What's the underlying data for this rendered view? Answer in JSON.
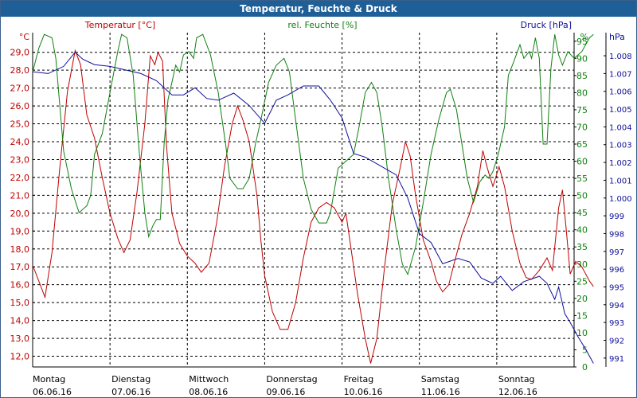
{
  "window": {
    "title": "Temperatur, Feuchte & Druck"
  },
  "chart_data": {
    "type": "line",
    "title": "Temperatur, Feuchte & Druck",
    "x": {
      "range": [
        0,
        7
      ],
      "unit": "days"
    },
    "days": [
      {
        "name": "Montag",
        "date": "06.06.16"
      },
      {
        "name": "Dienstag",
        "date": "07.06.16"
      },
      {
        "name": "Mittwoch",
        "date": "08.06.16"
      },
      {
        "name": "Donnerstag",
        "date": "09.06.16"
      },
      {
        "name": "Freitag",
        "date": "10.06.16"
      },
      {
        "name": "Samstag",
        "date": "11.06.16"
      },
      {
        "name": "Sonntag",
        "date": "12.06.16"
      }
    ],
    "axes": {
      "temperature": {
        "label": "Temperatur [°C]",
        "unit": "°C",
        "min": 11.4,
        "max": 30.1,
        "ticks": [
          "29,0",
          "28,0",
          "27,0",
          "26,0",
          "25,0",
          "24,0",
          "23,0",
          "22,0",
          "21,0",
          "20,0",
          "19,0",
          "18,0",
          "17,0",
          "16,0",
          "15,0",
          "14,0",
          "13,0",
          "12,0"
        ]
      },
      "humidity": {
        "label": "rel. Feuchte [%]",
        "unit": "%",
        "min": 0,
        "max": 97.5,
        "ticks": [
          "95",
          "90",
          "85",
          "80",
          "75",
          "70",
          "65",
          "60",
          "55",
          "50",
          "45",
          "40",
          "35",
          "30",
          "25",
          "20",
          "15",
          "10",
          "5",
          "0"
        ]
      },
      "pressure": {
        "label": "Druck [hPa]",
        "unit": "hPa",
        "min": 990.5,
        "max": 1009.3,
        "ticks": [
          "1.008",
          "1.007",
          "1.006",
          "1.005",
          "1.004",
          "1.003",
          "1.002",
          "1.001",
          "1.000",
          "999",
          "998",
          "997",
          "996",
          "995",
          "994",
          "993",
          "992",
          "991"
        ]
      }
    },
    "series": [
      {
        "name": "Temperatur [°C]",
        "color": "#c00000",
        "points": [
          [
            0,
            17.1
          ],
          [
            0.08,
            16.2
          ],
          [
            0.16,
            15.3
          ],
          [
            0.25,
            17.8
          ],
          [
            0.35,
            22.5
          ],
          [
            0.45,
            26.8
          ],
          [
            0.55,
            29.1
          ],
          [
            0.62,
            28.3
          ],
          [
            0.7,
            25.5
          ],
          [
            0.8,
            24.2
          ],
          [
            0.9,
            22.0
          ],
          [
            1.0,
            20.0
          ],
          [
            1.1,
            18.6
          ],
          [
            1.18,
            17.8
          ],
          [
            1.26,
            18.5
          ],
          [
            1.35,
            21.2
          ],
          [
            1.45,
            25.0
          ],
          [
            1.52,
            28.8
          ],
          [
            1.58,
            28.3
          ],
          [
            1.62,
            29.0
          ],
          [
            1.68,
            28.5
          ],
          [
            1.73,
            23.8
          ],
          [
            1.8,
            20.0
          ],
          [
            1.9,
            18.3
          ],
          [
            2.0,
            17.6
          ],
          [
            2.1,
            17.2
          ],
          [
            2.18,
            16.7
          ],
          [
            2.28,
            17.2
          ],
          [
            2.38,
            19.5
          ],
          [
            2.48,
            22.6
          ],
          [
            2.58,
            25.0
          ],
          [
            2.65,
            26.0
          ],
          [
            2.72,
            25.2
          ],
          [
            2.8,
            24.0
          ],
          [
            2.9,
            21.0
          ],
          [
            2.95,
            18.5
          ],
          [
            3.0,
            16.5
          ],
          [
            3.1,
            14.5
          ],
          [
            3.2,
            13.5
          ],
          [
            3.3,
            13.5
          ],
          [
            3.4,
            15.0
          ],
          [
            3.5,
            17.5
          ],
          [
            3.6,
            19.5
          ],
          [
            3.7,
            20.3
          ],
          [
            3.8,
            20.6
          ],
          [
            3.9,
            20.3
          ],
          [
            4.0,
            19.5
          ],
          [
            4.05,
            20.0
          ],
          [
            4.1,
            18.5
          ],
          [
            4.2,
            15.5
          ],
          [
            4.3,
            13.0
          ],
          [
            4.37,
            11.6
          ],
          [
            4.45,
            13.0
          ],
          [
            4.55,
            17.0
          ],
          [
            4.65,
            20.5
          ],
          [
            4.75,
            22.5
          ],
          [
            4.82,
            24.0
          ],
          [
            4.88,
            23.2
          ],
          [
            4.95,
            21.0
          ],
          [
            5.05,
            18.5
          ],
          [
            5.15,
            17.3
          ],
          [
            5.22,
            16.2
          ],
          [
            5.3,
            15.6
          ],
          [
            5.38,
            16.0
          ],
          [
            5.45,
            17.2
          ],
          [
            5.55,
            18.8
          ],
          [
            5.65,
            20.0
          ],
          [
            5.75,
            21.5
          ],
          [
            5.82,
            23.5
          ],
          [
            5.88,
            22.5
          ],
          [
            5.95,
            21.5
          ],
          [
            6.03,
            22.6
          ],
          [
            6.1,
            21.5
          ],
          [
            6.2,
            19.0
          ],
          [
            6.3,
            17.2
          ],
          [
            6.38,
            16.4
          ],
          [
            6.45,
            16.3
          ],
          [
            6.55,
            16.8
          ],
          [
            6.65,
            17.5
          ],
          [
            6.72,
            16.8
          ],
          [
            6.8,
            20.3
          ],
          [
            6.85,
            21.3
          ],
          [
            6.9,
            19.0
          ],
          [
            6.95,
            16.6
          ],
          [
            7.02,
            17.3
          ],
          [
            7.1,
            17.0
          ],
          [
            7.2,
            16.2
          ],
          [
            7.25,
            15.9
          ]
        ]
      },
      {
        "name": "rel. Feuchte [%]",
        "color": "#108010",
        "points": [
          [
            0,
            86
          ],
          [
            0.08,
            93
          ],
          [
            0.15,
            97
          ],
          [
            0.25,
            96
          ],
          [
            0.3,
            90
          ],
          [
            0.4,
            63
          ],
          [
            0.5,
            52
          ],
          [
            0.6,
            45
          ],
          [
            0.7,
            47
          ],
          [
            0.75,
            50
          ],
          [
            0.8,
            62
          ],
          [
            0.9,
            68
          ],
          [
            1.0,
            80
          ],
          [
            1.1,
            92
          ],
          [
            1.15,
            97
          ],
          [
            1.22,
            96
          ],
          [
            1.3,
            85
          ],
          [
            1.38,
            62
          ],
          [
            1.45,
            45
          ],
          [
            1.5,
            38
          ],
          [
            1.55,
            41
          ],
          [
            1.6,
            43
          ],
          [
            1.65,
            43
          ],
          [
            1.7,
            65
          ],
          [
            1.75,
            78
          ],
          [
            1.8,
            83
          ],
          [
            1.85,
            88
          ],
          [
            1.9,
            86
          ],
          [
            1.95,
            91
          ],
          [
            2.02,
            92
          ],
          [
            2.08,
            90
          ],
          [
            2.12,
            96
          ],
          [
            2.2,
            97
          ],
          [
            2.3,
            91
          ],
          [
            2.4,
            80
          ],
          [
            2.5,
            64
          ],
          [
            2.55,
            55
          ],
          [
            2.65,
            52
          ],
          [
            2.72,
            52
          ],
          [
            2.8,
            55
          ],
          [
            2.88,
            65
          ],
          [
            2.95,
            72
          ],
          [
            3.05,
            83
          ],
          [
            3.15,
            88
          ],
          [
            3.25,
            90
          ],
          [
            3.32,
            86
          ],
          [
            3.4,
            72
          ],
          [
            3.5,
            55
          ],
          [
            3.6,
            46
          ],
          [
            3.7,
            42
          ],
          [
            3.8,
            42
          ],
          [
            3.85,
            45
          ],
          [
            3.95,
            58
          ],
          [
            4.05,
            60
          ],
          [
            4.15,
            62
          ],
          [
            4.22,
            70
          ],
          [
            4.3,
            80
          ],
          [
            4.38,
            83
          ],
          [
            4.45,
            80
          ],
          [
            4.52,
            70
          ],
          [
            4.6,
            55
          ],
          [
            4.7,
            40
          ],
          [
            4.78,
            30
          ],
          [
            4.85,
            27
          ],
          [
            4.95,
            35
          ],
          [
            5.05,
            48
          ],
          [
            5.15,
            62
          ],
          [
            5.25,
            72
          ],
          [
            5.35,
            80
          ],
          [
            5.4,
            81
          ],
          [
            5.48,
            75
          ],
          [
            5.55,
            65
          ],
          [
            5.62,
            55
          ],
          [
            5.7,
            48
          ],
          [
            5.78,
            54
          ],
          [
            5.85,
            56
          ],
          [
            5.9,
            55
          ],
          [
            5.95,
            57
          ],
          [
            6.02,
            62
          ],
          [
            6.1,
            70
          ],
          [
            6.15,
            85
          ],
          [
            6.22,
            89
          ],
          [
            6.3,
            94
          ],
          [
            6.35,
            90
          ],
          [
            6.42,
            92
          ],
          [
            6.45,
            90
          ],
          [
            6.5,
            96
          ],
          [
            6.55,
            90
          ],
          [
            6.6,
            65
          ],
          [
            6.65,
            65
          ],
          [
            6.7,
            87
          ],
          [
            6.75,
            97
          ],
          [
            6.8,
            91
          ],
          [
            6.85,
            88
          ],
          [
            6.92,
            92
          ],
          [
            7.0,
            90
          ],
          [
            7.1,
            92
          ],
          [
            7.2,
            96
          ],
          [
            7.25,
            97
          ]
        ]
      },
      {
        "name": "Druck [hPa]",
        "color": "#10109a",
        "points": [
          [
            0,
            1007.1
          ],
          [
            0.2,
            1007.0
          ],
          [
            0.4,
            1007.4
          ],
          [
            0.55,
            1008.2
          ],
          [
            0.65,
            1007.8
          ],
          [
            0.8,
            1007.5
          ],
          [
            1.0,
            1007.4
          ],
          [
            1.2,
            1007.2
          ],
          [
            1.4,
            1007.0
          ],
          [
            1.6,
            1006.6
          ],
          [
            1.8,
            1005.8
          ],
          [
            1.95,
            1005.8
          ],
          [
            2.1,
            1006.2
          ],
          [
            2.25,
            1005.6
          ],
          [
            2.4,
            1005.5
          ],
          [
            2.6,
            1005.9
          ],
          [
            2.8,
            1005.2
          ],
          [
            3.0,
            1004.2
          ],
          [
            3.15,
            1005.5
          ],
          [
            3.3,
            1005.8
          ],
          [
            3.5,
            1006.3
          ],
          [
            3.7,
            1006.3
          ],
          [
            3.85,
            1005.5
          ],
          [
            4.0,
            1004.5
          ],
          [
            4.15,
            1002.5
          ],
          [
            4.3,
            1002.3
          ],
          [
            4.5,
            1001.8
          ],
          [
            4.7,
            1001.3
          ],
          [
            4.85,
            1000.0
          ],
          [
            5.0,
            998.0
          ],
          [
            5.15,
            997.5
          ],
          [
            5.3,
            996.3
          ],
          [
            5.5,
            996.6
          ],
          [
            5.65,
            996.4
          ],
          [
            5.8,
            995.5
          ],
          [
            5.95,
            995.2
          ],
          [
            6.05,
            995.6
          ],
          [
            6.2,
            994.8
          ],
          [
            6.35,
            995.3
          ],
          [
            6.55,
            995.6
          ],
          [
            6.65,
            995.2
          ],
          [
            6.75,
            994.3
          ],
          [
            6.8,
            995.0
          ],
          [
            6.88,
            993.5
          ],
          [
            6.95,
            993.0
          ],
          [
            7.05,
            992.2
          ],
          [
            7.15,
            991.5
          ],
          [
            7.25,
            990.7
          ]
        ]
      }
    ]
  }
}
